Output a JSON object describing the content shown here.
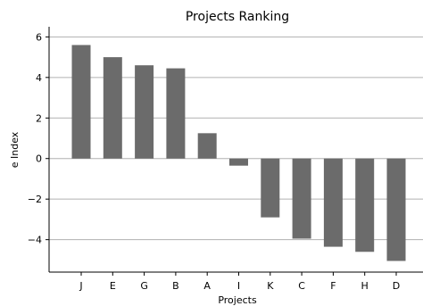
{
  "chart_data": {
    "type": "bar",
    "title": "Projects Ranking",
    "xlabel": "Projects",
    "ylabel": "e Index",
    "categories": [
      "J",
      "E",
      "G",
      "B",
      "A",
      "I",
      "K",
      "C",
      "F",
      "H",
      "D"
    ],
    "values": [
      5.6,
      5.0,
      4.6,
      4.45,
      1.25,
      -0.35,
      -2.9,
      -3.95,
      -4.35,
      -4.6,
      -5.05
    ],
    "ylim": [
      -5.6,
      6.5
    ],
    "yticks": [
      6,
      4,
      2,
      0,
      -2,
      -4
    ],
    "ytick_labels": [
      "6",
      "4",
      "2",
      "0",
      "−2",
      "−4"
    ],
    "grid": "horizontal",
    "legend": "none",
    "colors": {
      "bar": "#6b6b6b",
      "grid": "#b0b0b0",
      "axis": "#000000",
      "background": "#ffffff"
    }
  }
}
